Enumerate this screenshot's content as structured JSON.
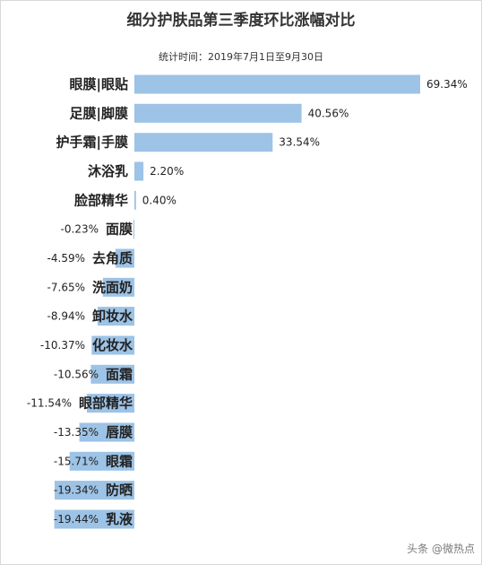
{
  "chart_data": {
    "type": "bar",
    "orientation": "horizontal",
    "title": "细分护肤品第三季度环比涨幅对比",
    "subtitle": "统计时间：2019年7月1日至9月30日",
    "categories": [
      "眼膜|眼贴",
      "足膜|脚膜",
      "护手霜|手膜",
      "沐浴乳",
      "脸部精华",
      "面膜",
      "去角质",
      "洗面奶",
      "卸妆水",
      "化妆水",
      "面霜",
      "眼部精华",
      "唇膜",
      "眼霜",
      "防晒",
      "乳液"
    ],
    "values": [
      69.34,
      40.56,
      33.54,
      2.2,
      0.4,
      -0.23,
      -4.59,
      -7.65,
      -8.94,
      -10.37,
      -10.56,
      -11.54,
      -13.35,
      -15.71,
      -19.34,
      -19.44
    ],
    "labels": [
      "69.34%",
      "40.56%",
      "33.54%",
      "2.20%",
      "0.40%",
      "-0.23%",
      "-4.59%",
      "-7.65%",
      "-8.94%",
      "-10.37%",
      "-10.56%",
      "-11.54%",
      "-13.35%",
      "-15.71%",
      "-19.34%",
      "-19.44%"
    ],
    "value_format": "percent",
    "bar_color": "#9dc3e6",
    "xlim": [
      -20,
      70
    ],
    "grid": false,
    "legend": "none"
  },
  "watermark": "头条 @微热点"
}
